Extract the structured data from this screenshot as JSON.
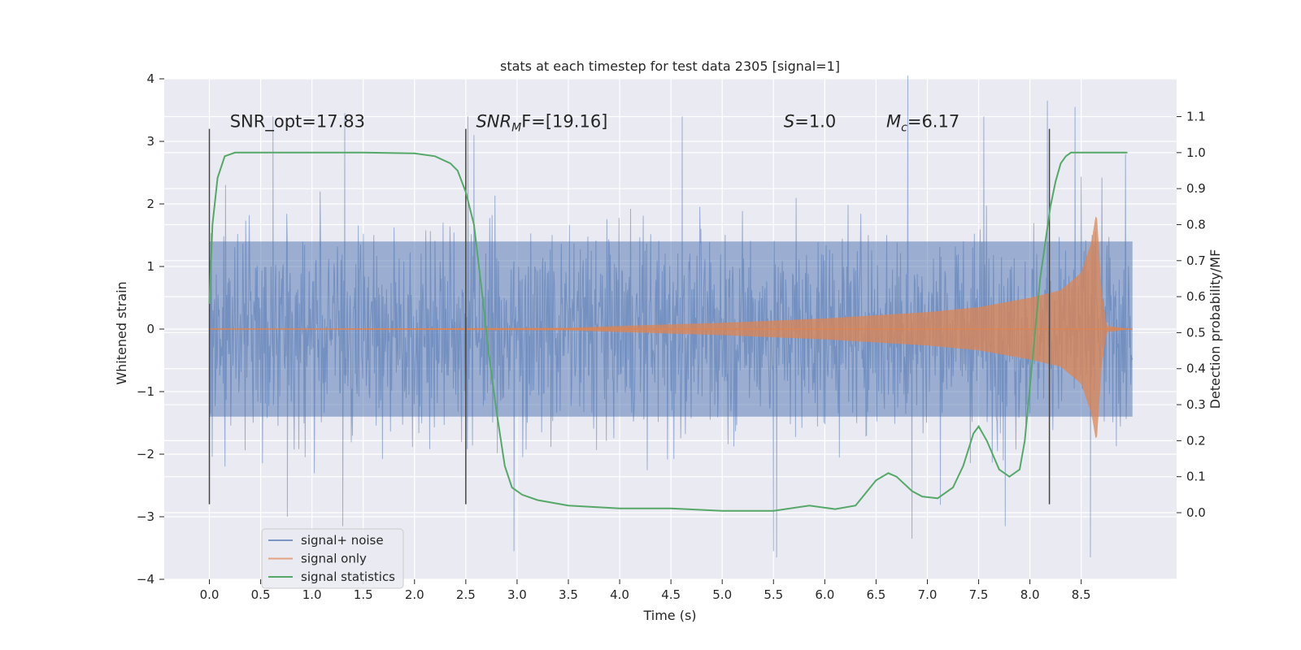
{
  "chart_data": {
    "type": "line",
    "title": "stats at each timestep for test data 2305 [signal=1]",
    "xlabel": "Time (s)",
    "ylabel": "Whitened strain",
    "ylabel_right": "Detection probability/MF",
    "xlim": [
      -0.44,
      9.43
    ],
    "ylim": [
      -4.0,
      4.0
    ],
    "ylim_right": [
      -0.185,
      1.205
    ],
    "x_ticks": [
      0.0,
      0.5,
      1.0,
      1.5,
      2.0,
      2.5,
      3.0,
      3.5,
      4.0,
      4.5,
      5.0,
      5.5,
      6.0,
      6.5,
      7.0,
      7.5,
      8.0,
      8.5
    ],
    "x_tick_labels": [
      "0.0",
      "0.5",
      "1.0",
      "1.5",
      "2.0",
      "2.5",
      "3.0",
      "3.5",
      "4.0",
      "4.5",
      "5.0",
      "5.5",
      "6.0",
      "6.5",
      "7.0",
      "7.5",
      "8.0",
      "8.5"
    ],
    "y_ticks": [
      4,
      3,
      2,
      1,
      0,
      -1,
      -2,
      -3,
      -4
    ],
    "y_tick_labels": [
      "4",
      "3",
      "2",
      "1",
      "0",
      "−1",
      "−2",
      "−3",
      "−4"
    ],
    "y_right_ticks": [
      1.1,
      1.0,
      0.9,
      0.8,
      0.7,
      0.6,
      0.5,
      0.4,
      0.3,
      0.2,
      0.1,
      0.0
    ],
    "y_right_tick_labels": [
      "1.1",
      "1.0",
      "0.9",
      "0.8",
      "0.7",
      "0.6",
      "0.5",
      "0.4",
      "0.3",
      "0.2",
      "0.1",
      "0.0"
    ],
    "grid": true,
    "legend_placement": "lower-left",
    "colors": {
      "noise": "#4c72b0",
      "signal": "#dd8452",
      "stats": "#55a868",
      "vline": "#444444",
      "background": "#eaeaf2",
      "grid": "#ffffff"
    },
    "series": [
      {
        "name": "signal+ noise",
        "axis": "left",
        "x_range": [
          0.0,
          9.0
        ],
        "envelope_typical": 1.4,
        "peaks_x": [
          0.62,
          1.32,
          2.52,
          2.58,
          4.61,
          6.81,
          7.55,
          8.17,
          8.44
        ],
        "peaks_y": [
          3.4,
          3.45,
          3.4,
          3.1,
          3.4,
          4.05,
          3.4,
          3.65,
          3.55
        ],
        "troughs_x": [
          0.76,
          1.3,
          2.97,
          5.5,
          5.53,
          6.85,
          7.76,
          8.59
        ],
        "troughs_y": [
          -3.0,
          -3.15,
          -3.55,
          -3.55,
          -3.65,
          -3.35,
          -3.15,
          -3.65
        ]
      },
      {
        "name": "signal only",
        "axis": "left",
        "x": [
          0.0,
          3.5,
          4.0,
          5.0,
          6.0,
          6.5,
          7.0,
          7.5,
          8.0,
          8.3,
          8.5,
          8.6,
          8.65,
          8.7,
          8.75,
          9.0
        ],
        "amplitude": [
          0.0,
          0.02,
          0.05,
          0.1,
          0.17,
          0.22,
          0.27,
          0.35,
          0.5,
          0.62,
          0.9,
          1.4,
          1.9,
          0.6,
          0.05,
          0.0
        ]
      },
      {
        "name": "signal statistics",
        "axis": "right",
        "x": [
          0.0,
          0.03,
          0.08,
          0.15,
          0.25,
          0.4,
          0.8,
          1.5,
          2.0,
          2.2,
          2.35,
          2.42,
          2.5,
          2.58,
          2.65,
          2.72,
          2.8,
          2.88,
          2.95,
          3.05,
          3.2,
          3.5,
          4.0,
          4.5,
          5.0,
          5.5,
          5.85,
          6.1,
          6.3,
          6.5,
          6.62,
          6.7,
          6.85,
          6.95,
          7.1,
          7.25,
          7.35,
          7.45,
          7.5,
          7.58,
          7.7,
          7.8,
          7.9,
          7.95,
          8.0,
          8.1,
          8.2,
          8.25,
          8.3,
          8.35,
          8.4,
          8.6,
          8.95
        ],
        "y": [
          0.58,
          0.8,
          0.93,
          0.99,
          1.0,
          1.0,
          1.0,
          1.0,
          0.998,
          0.99,
          0.97,
          0.95,
          0.89,
          0.8,
          0.63,
          0.45,
          0.28,
          0.13,
          0.07,
          0.05,
          0.035,
          0.02,
          0.012,
          0.012,
          0.005,
          0.005,
          0.02,
          0.01,
          0.02,
          0.09,
          0.11,
          0.1,
          0.06,
          0.045,
          0.04,
          0.07,
          0.13,
          0.22,
          0.24,
          0.2,
          0.12,
          0.1,
          0.12,
          0.2,
          0.35,
          0.65,
          0.85,
          0.92,
          0.97,
          0.99,
          1.0,
          1.0,
          1.0
        ]
      }
    ],
    "vlines": [
      0.0,
      2.5,
      8.19
    ],
    "vlines_range": [
      -2.8,
      3.2
    ],
    "annotations": [
      {
        "name": "snr-opt",
        "x": 0.2,
        "y": 3.2,
        "text": "SNR_opt=17.83"
      },
      {
        "name": "snr-mf",
        "x": 2.6,
        "y": 3.2,
        "pre": "SNR",
        "sub": "M",
        "post": "F=[19.16]"
      },
      {
        "name": "s-value",
        "x": 5.6,
        "y": 3.2,
        "pre": "S",
        "post": "=1.0"
      },
      {
        "name": "chirp-mass",
        "x": 6.6,
        "y": 3.2,
        "pre": "M",
        "sub": "c",
        "post": "=6.17"
      }
    ],
    "legend": [
      {
        "label": "signal+ noise",
        "color": "#4c72b0"
      },
      {
        "label": "signal only",
        "color": "#dd8452"
      },
      {
        "label": "signal statistics",
        "color": "#55a868"
      }
    ]
  }
}
